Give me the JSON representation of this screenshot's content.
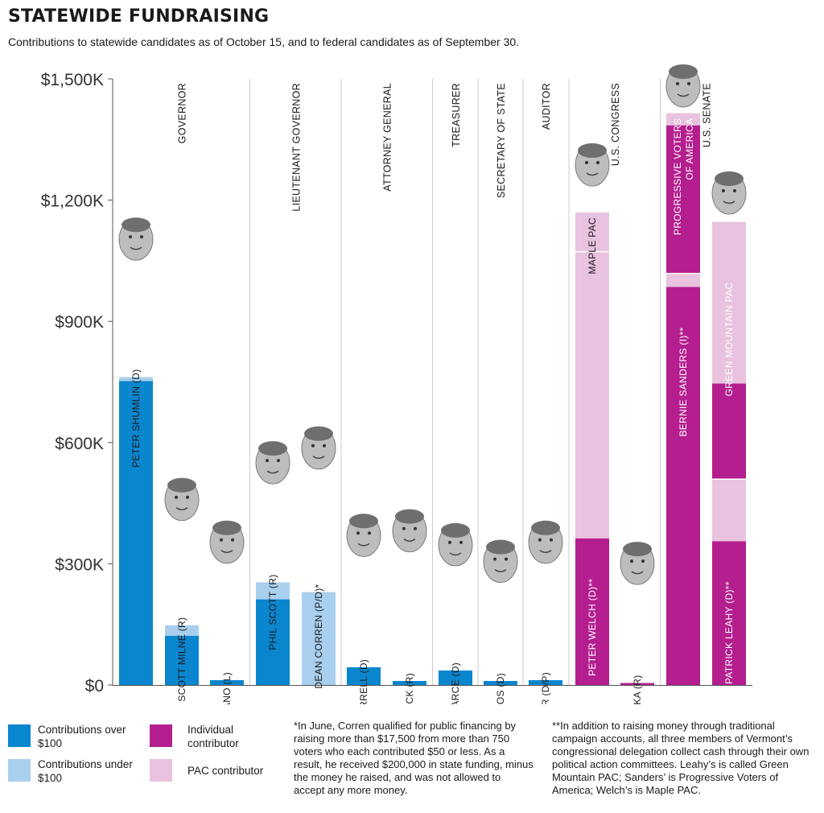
{
  "header": {
    "title": "STATEWIDE FUNDRAISING",
    "subtitle": "Contributions to statewide candidates as of October 15, and to federal candidates as of September 30."
  },
  "legend": [
    {
      "label": "Contributions over $100",
      "color": "#0a86cf"
    },
    {
      "label": "Contributions under $100",
      "color": "#a9cfee"
    },
    {
      "label": "Individual contributor",
      "color": "#b41e8e"
    },
    {
      "label": "PAC contributor",
      "color": "#e8c2de"
    }
  ],
  "footnotes": {
    "corren": "*In June, Corren qualified for public financing by raising more than $17,500 from more than 750 voters who each contributed $50 or less. As a result, he received $200,000 in state funding, minus the money he raised, and was not allowed to accept any more money.",
    "congress": "**In addition to raising money through traditional campaign accounts, all three members of Vermont’s congressional delegation collect cash through their own political action committees. Leahy’s is called Green Mountain PAC; Sanders’ is Progressive Voters of America; Welch’s is Maple PAC."
  },
  "colors": {
    "over100": "#0a86cf",
    "under100": "#a9cfee",
    "individual": "#b41e8e",
    "pac": "#e8c2de",
    "divider": "#cccccc",
    "axis": "#555555"
  },
  "chart_data": {
    "type": "bar",
    "stacked": true,
    "ylim": [
      0,
      1500
    ],
    "y_unit": "thousands of dollars",
    "y_ticks": [
      {
        "value": 0,
        "label": "$0"
      },
      {
        "value": 300,
        "label": "$300K"
      },
      {
        "value": 600,
        "label": "$600K"
      },
      {
        "value": 900,
        "label": "$900K"
      },
      {
        "value": 1200,
        "label": "$1,200K"
      },
      {
        "value": 1500,
        "label": "$1,500K"
      }
    ],
    "series": [
      {
        "name": "Contributions over $100"
      },
      {
        "name": "Contributions under $100"
      },
      {
        "name": "Individual contributor"
      },
      {
        "name": "PAC contributor"
      }
    ],
    "offices": [
      {
        "label": "GOVERNOR",
        "first": 0,
        "last": 2
      },
      {
        "label": "LIEUTENANT GOVERNOR",
        "first": 3,
        "last": 4
      },
      {
        "label": "ATTORNEY GENERAL",
        "first": 5,
        "last": 6
      },
      {
        "label": "TREASURER",
        "first": 7,
        "last": 7
      },
      {
        "label": "SECRETARY OF STATE",
        "first": 8,
        "last": 8
      },
      {
        "label": "AUDITOR",
        "first": 9,
        "last": 9
      },
      {
        "label": "U.S. CONGRESS",
        "first": 10,
        "last": 11
      },
      {
        "label": "U.S. SENATE",
        "first": 12,
        "last": 13
      }
    ],
    "candidates": [
      {
        "name": "PETER SHUMLIN (D)",
        "over100": 752,
        "under100": 10
      },
      {
        "name": "SCOTT MILNE (R)",
        "over100": 122,
        "under100": 26
      },
      {
        "name": "DAN FELICIANO (L)",
        "over100": 12,
        "under100": 0
      },
      {
        "name": "PHIL SCOTT (R)",
        "over100": 212,
        "under100": 42
      },
      {
        "name": "DEAN CORREN (P/D)*",
        "over100": 0,
        "under100": 230
      },
      {
        "name": "BILL SORRELL (D)",
        "over100": 44,
        "under100": 0
      },
      {
        "name": "SHANE MCCORMACK (R)",
        "over100": 10,
        "under100": 0
      },
      {
        "name": "BETH PEARCE (D)",
        "over100": 36,
        "under100": 0
      },
      {
        "name": "JIM CONDOS (D)",
        "over100": 10,
        "under100": 0
      },
      {
        "name": "DOUG HOFFER (D/P)",
        "over100": 12,
        "under100": 0
      },
      {
        "name": "PETER WELCH (D)**",
        "individual": 363,
        "pac": 708,
        "pac_committee": {
          "name": "MAPLE PAC",
          "pac": 95
        }
      },
      {
        "name": "MARK DONKA (R)",
        "individual": 5,
        "pac": 0
      },
      {
        "name": "BERNIE SANDERS (I)**",
        "individual": 985,
        "pac": 32,
        "pac_committee": {
          "name": "PROGRESSIVE VOTERS OF AMERICA",
          "individual": 365,
          "pac": 30
        }
      },
      {
        "name": "PATRICK LEAHY (D)**",
        "individual": 356,
        "pac": 152,
        "pac_committee": {
          "name": "GREEN MOUNTAIN PAC",
          "individual": 235,
          "pac": 400
        }
      }
    ]
  }
}
